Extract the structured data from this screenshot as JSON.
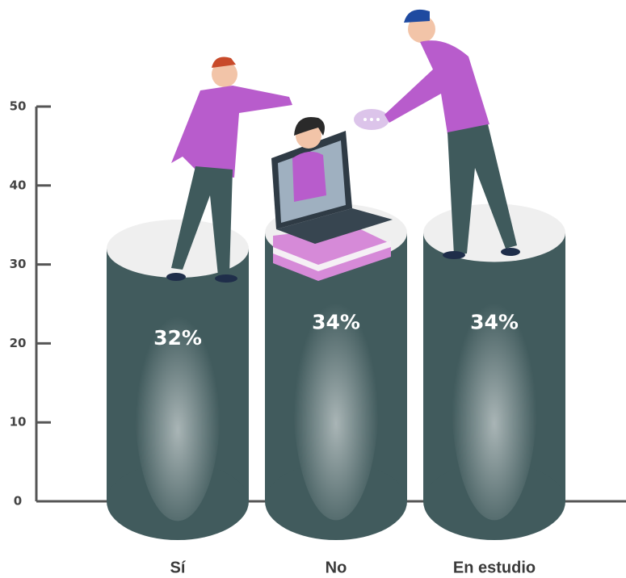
{
  "chart_data": {
    "type": "bar",
    "categories": [
      "Sí",
      "No",
      "En estudio"
    ],
    "values": [
      32,
      34,
      34
    ],
    "value_labels": [
      "32%",
      "34%",
      "34%"
    ],
    "ylim": [
      0,
      50
    ],
    "yticks": [
      0,
      10,
      20,
      30,
      40,
      50
    ],
    "color": "#415b5d"
  }
}
